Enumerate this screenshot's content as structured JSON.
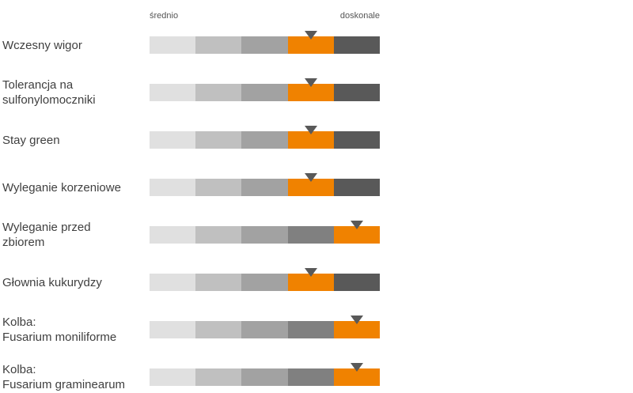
{
  "chart_data": {
    "type": "rating-scale",
    "scale": {
      "low_label": "średnio",
      "high_label": "doskonale",
      "levels": 5
    },
    "colors": {
      "levels": [
        "#e0e0e0",
        "#c0c0c0",
        "#a2a2a2",
        "#808080",
        "#595959"
      ],
      "highlight": "#f08200",
      "marker": "#595959"
    },
    "rows": [
      {
        "label": "Wczesny wigor",
        "rating": 4
      },
      {
        "label": "Tolerancja na\nsulfonylomoczniki",
        "rating": 4
      },
      {
        "label": "Stay green",
        "rating": 4
      },
      {
        "label": "Wyleganie korzeniowe",
        "rating": 4
      },
      {
        "label": "Wyleganie przed\nzbiorem",
        "rating": 5
      },
      {
        "label": "Głownia kukurydzy",
        "rating": 4
      },
      {
        "label": "Kolba:\nFusarium moniliforme",
        "rating": 5
      },
      {
        "label": "Kolba:\nFusarium graminearum",
        "rating": 5
      }
    ]
  }
}
